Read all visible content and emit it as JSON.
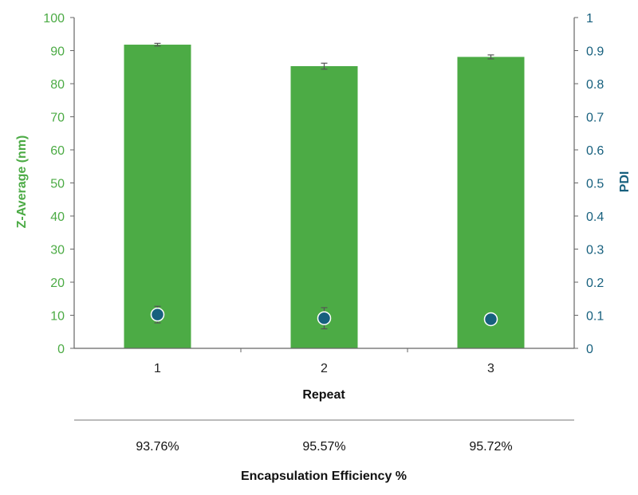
{
  "chart_data": {
    "type": "bar",
    "xlabel": "Repeat",
    "categories": [
      "1",
      "2",
      "3"
    ],
    "y_left": {
      "label": "Z-Average (nm)",
      "ylim": [
        0,
        100
      ],
      "ticks": [
        "0",
        "10",
        "20",
        "30",
        "40",
        "50",
        "60",
        "70",
        "80",
        "90",
        "100"
      ]
    },
    "y_right": {
      "label": "PDI",
      "ylim": [
        0,
        1
      ],
      "ticks": [
        "0",
        "0.1",
        "0.2",
        "0.3",
        "0.4",
        "0.5",
        "0.6",
        "0.7",
        "0.8",
        "0.9",
        "1"
      ]
    },
    "series": [
      {
        "kind": "bar",
        "axis": "left",
        "values": [
          91.8,
          85.3,
          88.1
        ],
        "errors": [
          0.4,
          0.9,
          0.6
        ],
        "color": "#4cab45"
      },
      {
        "kind": "scatter",
        "axis": "right",
        "values": [
          0.102,
          0.091,
          0.088
        ],
        "errors": [
          0.025,
          0.032,
          0.0
        ],
        "color": "#17607e"
      }
    ],
    "grid": false,
    "table": {
      "title": "Encapsulation Efficiency %",
      "values": [
        "93.76%",
        "95.57%",
        "95.72%"
      ]
    }
  },
  "colors": {
    "bar": "#4cab45",
    "marker": "#17607e",
    "left_axis": "#4cab45",
    "right_axis": "#17607e",
    "axis_line": "#666666",
    "divider": "#777777"
  }
}
